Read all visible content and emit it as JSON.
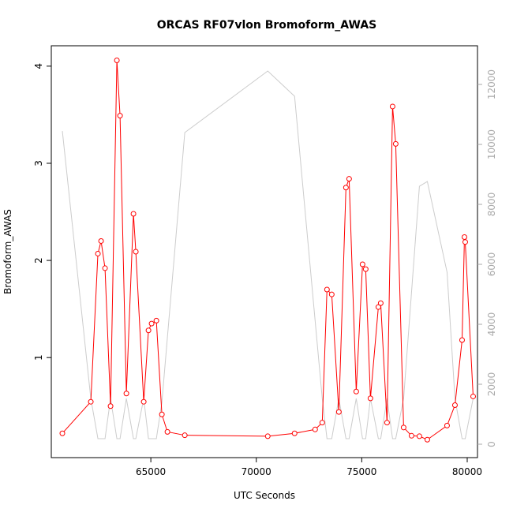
{
  "chart_data": {
    "type": "line",
    "title": "ORCAS RF07vlon Bromoform_AWAS",
    "xlabel": "UTC Seconds",
    "ylabel": "Bromoform_AWAS",
    "xlim": [
      60281,
      80487
    ],
    "xticks": [
      65000,
      70000,
      75000,
      80000
    ],
    "ylim": [
      -0.03,
      4.21
    ],
    "yticks": [
      1,
      2,
      3,
      4
    ],
    "y2lim": [
      -447,
      13290
    ],
    "y2ticks": [
      0,
      2000,
      4000,
      6000,
      8000,
      10000,
      12000
    ],
    "series": [
      {
        "color": "#cccccc",
        "axis": "y2",
        "markers": false,
        "x": [
          60805,
          62154,
          62491,
          62828,
          63090,
          63390,
          63540,
          63840,
          64176,
          64288,
          64663,
          64888,
          65262,
          65524,
          66610,
          70543,
          71816,
          73127,
          73352,
          73577,
          73914,
          74251,
          74401,
          74738,
          75037,
          75187,
          75412,
          75787,
          75899,
          76199,
          76461,
          76610,
          76985,
          77734,
          78109,
          79045,
          79419,
          79757,
          79906,
          80281
        ],
        "values": [
          10447,
          1526,
          184,
          184,
          1526,
          184,
          184,
          1526,
          184,
          184,
          1526,
          184,
          184,
          1395,
          10395,
          12447,
          11605,
          1526,
          184,
          184,
          1526,
          184,
          184,
          1526,
          184,
          184,
          1526,
          184,
          184,
          1526,
          184,
          184,
          1526,
          8605,
          8763,
          5737,
          1526,
          184,
          184,
          1526
        ]
      },
      {
        "color": "#ff0000",
        "axis": "y",
        "markers": true,
        "x": [
          60805,
          62154,
          62491,
          62641,
          62828,
          63090,
          63390,
          63540,
          63840,
          64176,
          64288,
          64663,
          64888,
          65037,
          65262,
          65524,
          65786,
          66610,
          70543,
          71816,
          72790,
          73127,
          73352,
          73577,
          73914,
          74251,
          74401,
          74738,
          75037,
          75187,
          75412,
          75787,
          75899,
          76199,
          76461,
          76610,
          76985,
          77360,
          77734,
          78109,
          79045,
          79419,
          79757,
          79869,
          79906,
          80281
        ],
        "values": [
          0.22,
          0.545,
          2.07,
          2.2,
          1.92,
          0.5,
          4.06,
          3.49,
          0.63,
          2.48,
          2.09,
          0.545,
          1.28,
          1.35,
          1.38,
          0.415,
          0.235,
          0.2,
          0.19,
          0.22,
          0.26,
          0.33,
          1.7,
          1.65,
          0.44,
          2.75,
          2.84,
          0.65,
          1.96,
          1.91,
          0.58,
          1.52,
          1.56,
          0.33,
          3.585,
          3.2,
          0.28,
          0.195,
          0.19,
          0.155,
          0.3,
          0.51,
          1.18,
          2.24,
          2.19,
          0.6
        ]
      }
    ]
  }
}
